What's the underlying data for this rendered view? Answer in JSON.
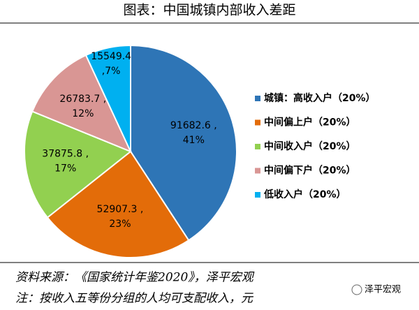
{
  "title": "图表：中国城镇内部收入差距",
  "chart_data": {
    "type": "pie",
    "series": [
      {
        "name": "城镇：高收入户（20%）",
        "color": "#2e75b6"
      },
      {
        "name": "中间偏上户（20%）",
        "color": "#e36c09"
      },
      {
        "name": "中间收入户（20%）",
        "color": "#92d050"
      },
      {
        "name": "中间偏下户（20%）",
        "color": "#d99694"
      },
      {
        "name": "低收入户（20%）",
        "color": "#00b0f0"
      }
    ],
    "values": [
      91682.6,
      52907.3,
      37875.8,
      26783.7,
      15549.4
    ],
    "value_labels": [
      "91682.6 ,",
      "52907.3 ,",
      "37875.8 ,",
      "26783.7 ,",
      "15549.4"
    ],
    "percents": [
      41,
      23,
      17,
      12,
      7
    ],
    "percent_labels": [
      "41%",
      "23%",
      "17%",
      "12%",
      ",7%"
    ]
  },
  "source": "资料来源：《国家统计年鉴2020》，泽平宏观",
  "note": "注：按收入五等份分组的人均可支配收入，元",
  "watermark": "泽平宏观"
}
